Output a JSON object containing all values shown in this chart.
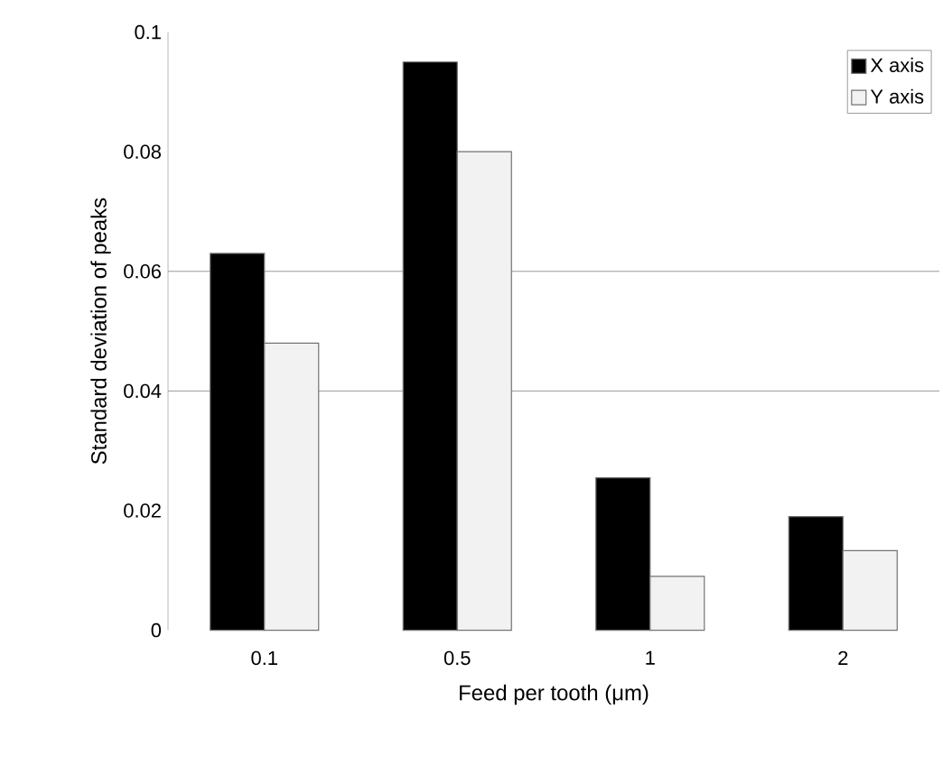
{
  "chart_data": {
    "type": "bar",
    "xlabel": "Feed per tooth (μm)",
    "ylabel": "Standard deviation of peaks",
    "categories": [
      "0.1",
      "0.5",
      "1",
      "2"
    ],
    "series": [
      {
        "name": "X axis",
        "color": "#000000",
        "values": [
          0.063,
          0.095,
          0.0255,
          0.019
        ]
      },
      {
        "name": "Y axis",
        "color": "#f2f2f2",
        "values": [
          0.048,
          0.08,
          0.009,
          0.0133
        ]
      }
    ],
    "ylim": [
      0,
      0.1
    ],
    "yticks": [
      0,
      0.02,
      0.04,
      0.06,
      0.08,
      0.1
    ],
    "ref_lines": [
      {
        "axis": "y",
        "value": 0.04,
        "color": "#808080"
      },
      {
        "axis": "y",
        "value": 0.06,
        "color": "#808080"
      }
    ],
    "legend": "top right"
  }
}
